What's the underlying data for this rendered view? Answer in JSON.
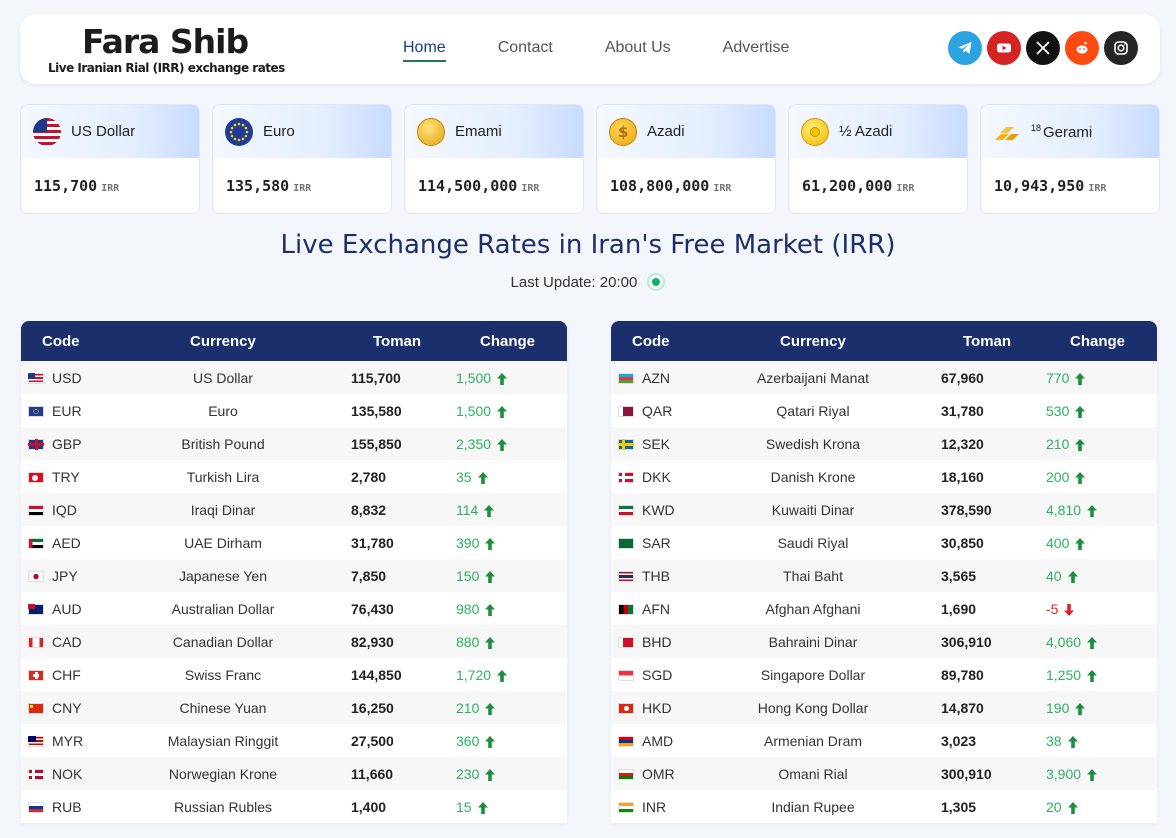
{
  "header": {
    "logo_title": "Fara Shib",
    "logo_subtitle": "Live Iranian Rial (IRR) exchange rates",
    "nav": [
      "Home",
      "Contact",
      "About Us",
      "Advertise"
    ],
    "socials": [
      {
        "name": "telegram-icon",
        "color": "#2aa3df"
      },
      {
        "name": "youtube-icon",
        "color": "#d32323"
      },
      {
        "name": "x-icon",
        "color": "#111111"
      },
      {
        "name": "reddit-icon",
        "color": "#ff4a12"
      },
      {
        "name": "instagram-icon",
        "color": "#262626"
      }
    ]
  },
  "cards": [
    {
      "name": "US Dollar",
      "value": "115,700",
      "unit": "IRR",
      "icon": "us-flag-icon"
    },
    {
      "name": "Euro",
      "value": "135,580",
      "unit": "IRR",
      "icon": "eu-flag-icon"
    },
    {
      "name": "Emami",
      "value": "114,500,000",
      "unit": "IRR",
      "icon": "gold-coin-icon"
    },
    {
      "name": "Azadi",
      "value": "108,800,000",
      "unit": "IRR",
      "icon": "dollar-coin-icon"
    },
    {
      "name": "½ Azadi",
      "value": "61,200,000",
      "unit": "IRR",
      "icon": "half-coin-icon"
    },
    {
      "name": "Gerami",
      "sup": "18",
      "value": "10,943,950",
      "unit": "IRR",
      "icon": "gold-bars-icon"
    }
  ],
  "main": {
    "title": "Live Exchange Rates in Iran's Free Market (IRR)",
    "update_label": "Last Update: 20:00"
  },
  "table_headers": [
    "Code",
    "Currency",
    "Toman",
    "Change"
  ],
  "table_left": [
    {
      "code": "USD",
      "currency": "US Dollar",
      "toman": "115,700",
      "change": "1,500",
      "dir": "up",
      "flag": "us"
    },
    {
      "code": "EUR",
      "currency": "Euro",
      "toman": "135,580",
      "change": "1,500",
      "dir": "up",
      "flag": "eu"
    },
    {
      "code": "GBP",
      "currency": "British Pound",
      "toman": "155,850",
      "change": "2,350",
      "dir": "up",
      "flag": "gb"
    },
    {
      "code": "TRY",
      "currency": "Turkish Lira",
      "toman": "2,780",
      "change": "35",
      "dir": "up",
      "flag": "tr"
    },
    {
      "code": "IQD",
      "currency": "Iraqi Dinar",
      "toman": "8,832",
      "change": "114",
      "dir": "up",
      "flag": "iq"
    },
    {
      "code": "AED",
      "currency": "UAE Dirham",
      "toman": "31,780",
      "change": "390",
      "dir": "up",
      "flag": "ae"
    },
    {
      "code": "JPY",
      "currency": "Japanese Yen",
      "toman": "7,850",
      "change": "150",
      "dir": "up",
      "flag": "jp"
    },
    {
      "code": "AUD",
      "currency": "Australian Dollar",
      "toman": "76,430",
      "change": "980",
      "dir": "up",
      "flag": "au"
    },
    {
      "code": "CAD",
      "currency": "Canadian Dollar",
      "toman": "82,930",
      "change": "880",
      "dir": "up",
      "flag": "ca"
    },
    {
      "code": "CHF",
      "currency": "Swiss Franc",
      "toman": "144,850",
      "change": "1,720",
      "dir": "up",
      "flag": "ch"
    },
    {
      "code": "CNY",
      "currency": "Chinese Yuan",
      "toman": "16,250",
      "change": "210",
      "dir": "up",
      "flag": "cn"
    },
    {
      "code": "MYR",
      "currency": "Malaysian Ringgit",
      "toman": "27,500",
      "change": "360",
      "dir": "up",
      "flag": "my"
    },
    {
      "code": "NOK",
      "currency": "Norwegian Krone",
      "toman": "11,660",
      "change": "230",
      "dir": "up",
      "flag": "no"
    },
    {
      "code": "RUB",
      "currency": "Russian Rubles",
      "toman": "1,400",
      "change": "15",
      "dir": "up",
      "flag": "ru"
    }
  ],
  "table_right": [
    {
      "code": "AZN",
      "currency": "Azerbaijani Manat",
      "toman": "67,960",
      "change": "770",
      "dir": "up",
      "flag": "az"
    },
    {
      "code": "QAR",
      "currency": "Qatari Riyal",
      "toman": "31,780",
      "change": "530",
      "dir": "up",
      "flag": "qa"
    },
    {
      "code": "SEK",
      "currency": "Swedish Krona",
      "toman": "12,320",
      "change": "210",
      "dir": "up",
      "flag": "se"
    },
    {
      "code": "DKK",
      "currency": "Danish Krone",
      "toman": "18,160",
      "change": "200",
      "dir": "up",
      "flag": "dk"
    },
    {
      "code": "KWD",
      "currency": "Kuwaiti Dinar",
      "toman": "378,590",
      "change": "4,810",
      "dir": "up",
      "flag": "kw"
    },
    {
      "code": "SAR",
      "currency": "Saudi Riyal",
      "toman": "30,850",
      "change": "400",
      "dir": "up",
      "flag": "sa"
    },
    {
      "code": "THB",
      "currency": "Thai Baht",
      "toman": "3,565",
      "change": "40",
      "dir": "up",
      "flag": "th"
    },
    {
      "code": "AFN",
      "currency": "Afghan Afghani",
      "toman": "1,690",
      "change": "-5",
      "dir": "down",
      "flag": "af"
    },
    {
      "code": "BHD",
      "currency": "Bahraini Dinar",
      "toman": "306,910",
      "change": "4,060",
      "dir": "up",
      "flag": "bh"
    },
    {
      "code": "SGD",
      "currency": "Singapore Dollar",
      "toman": "89,780",
      "change": "1,250",
      "dir": "up",
      "flag": "sg"
    },
    {
      "code": "HKD",
      "currency": "Hong Kong Dollar",
      "toman": "14,870",
      "change": "190",
      "dir": "up",
      "flag": "hk"
    },
    {
      "code": "AMD",
      "currency": "Armenian Dram",
      "toman": "3,023",
      "change": "38",
      "dir": "up",
      "flag": "am"
    },
    {
      "code": "OMR",
      "currency": "Omani Rial",
      "toman": "300,910",
      "change": "3,900",
      "dir": "up",
      "flag": "om"
    },
    {
      "code": "INR",
      "currency": "Indian Rupee",
      "toman": "1,305",
      "change": "20",
      "dir": "up",
      "flag": "in"
    }
  ],
  "colors": {
    "header_bg": "#1a2f6b",
    "up": "#2bb35d",
    "down": "#d9232a",
    "arrow_up": "#1c8f3c"
  }
}
